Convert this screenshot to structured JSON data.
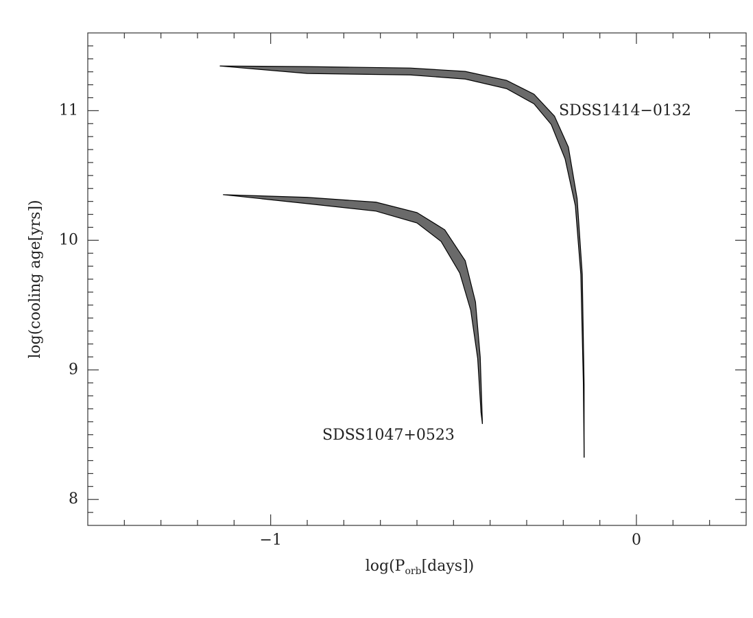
{
  "chart_data": {
    "type": "band",
    "xlabel": [
      "log(P",
      "orb",
      "[days])"
    ],
    "ylabel": "log(cooling age[yrs])",
    "xlim": [
      -1.5,
      0.3
    ],
    "ylim": [
      7.8,
      11.6
    ],
    "xticks": [
      {
        "value": -1,
        "label": "−1"
      },
      0
    ],
    "yticks": [
      8,
      9,
      10,
      11
    ],
    "xminorticks": [
      -1.4,
      -1.3,
      -1.2,
      -1.1,
      -0.9,
      -0.8,
      -0.7,
      -0.6,
      -0.5,
      -0.4,
      -0.3,
      -0.2,
      -0.1,
      0.1,
      0.2
    ],
    "yminorticks": [
      7.9,
      8.1,
      8.2,
      8.3,
      8.4,
      8.5,
      8.6,
      8.7,
      8.8,
      8.9,
      9.1,
      9.2,
      9.3,
      9.4,
      9.5,
      9.6,
      9.7,
      9.8,
      9.9,
      10.1,
      10.2,
      10.3,
      10.4,
      10.5,
      10.6,
      10.7,
      10.8,
      10.9,
      11.1,
      11.2,
      11.3,
      11.4,
      11.5
    ],
    "series": [
      {
        "name": "SDSS1414−0132",
        "color": "#6a6a6a",
        "upper": {
          "x": [
            -1.139,
            -0.9,
            -0.618,
            -0.468,
            -0.355,
            -0.28,
            -0.224,
            -0.186,
            -0.162,
            -0.148,
            -0.143,
            -0.143
          ],
          "y": [
            11.345,
            11.34,
            11.329,
            11.303,
            11.234,
            11.127,
            10.958,
            10.719,
            10.32,
            9.736,
            8.886,
            8.323
          ]
        },
        "lower": {
          "x": [
            -1.139,
            -0.9,
            -0.618,
            -0.468,
            -0.355,
            -0.28,
            -0.233,
            -0.195,
            -0.167,
            -0.152,
            -0.145,
            -0.143
          ],
          "y": [
            11.345,
            11.287,
            11.276,
            11.244,
            11.17,
            11.053,
            10.894,
            10.628,
            10.267,
            9.736,
            8.886,
            8.323
          ]
        }
      },
      {
        "name": "SDSS1047+0523",
        "color": "#6a6a6a",
        "upper": {
          "x": [
            -1.13,
            -0.9,
            -0.712,
            -0.6,
            -0.524,
            -0.468,
            -0.44,
            -0.427,
            -0.421
          ],
          "y": [
            10.352,
            10.331,
            10.294,
            10.214,
            10.081,
            9.842,
            9.524,
            9.099,
            8.583
          ]
        },
        "lower": {
          "x": [
            -1.13,
            -0.9,
            -0.712,
            -0.6,
            -0.534,
            -0.483,
            -0.453,
            -0.434,
            -0.425,
            -0.421
          ],
          "y": [
            10.352,
            10.283,
            10.225,
            10.134,
            9.991,
            9.747,
            9.46,
            9.088,
            8.674,
            8.583
          ]
        }
      }
    ]
  }
}
